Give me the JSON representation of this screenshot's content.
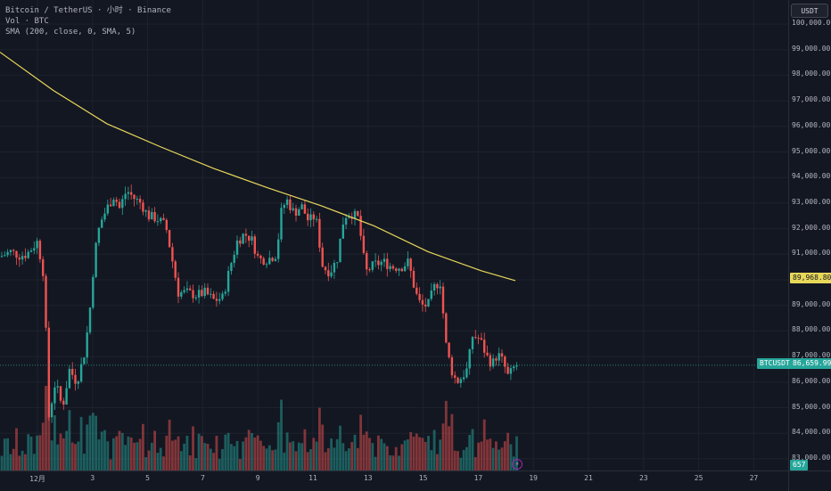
{
  "legend": {
    "symbol_line": "Bitcoin / TetherUS · 小时 · Binance",
    "volume_line": "Vol · BTC",
    "sma_line": "SMA (200, close, 0, SMA, 5)"
  },
  "currency_button": "USDT",
  "price_ticks": [
    "100,000.00",
    "99,000.00",
    "98,000.00",
    "97,000.00",
    "96,000.00",
    "95,000.00",
    "94,000.00",
    "93,000.00",
    "92,000.00",
    "91,000.00",
    "90,000.00",
    "89,000.00",
    "88,000.00",
    "87,000.00",
    "86,000.00",
    "85,000.00",
    "84,000.00",
    "83,000.00"
  ],
  "time_ticks": [
    "12月",
    "3",
    "5",
    "7",
    "9",
    "11",
    "13",
    "15",
    "17",
    "19",
    "21",
    "23",
    "25",
    "27"
  ],
  "tags": {
    "sma_value": "89,968.80",
    "current_price": "86,659.99",
    "symbol": "BTCUSDT",
    "volume": "657"
  },
  "colors": {
    "up": "#26a69a",
    "down": "#ef5350",
    "sma": "#e8d85a",
    "background": "#131722"
  },
  "chart_data": {
    "type": "candlestick",
    "timeframe": "1h",
    "ylim": [
      82600,
      100600
    ],
    "price_anchors": [
      {
        "x": 0,
        "price": 90900
      },
      {
        "x": 12,
        "price": 91100
      },
      {
        "x": 22,
        "price": 90950
      },
      {
        "x": 30,
        "price": 91000
      },
      {
        "x": 42,
        "price": 91500
      },
      {
        "x": 50,
        "price": 90000
      },
      {
        "x": 54,
        "price": 84500
      },
      {
        "x": 62,
        "price": 86000
      },
      {
        "x": 70,
        "price": 85000
      },
      {
        "x": 78,
        "price": 86500
      },
      {
        "x": 86,
        "price": 86000
      },
      {
        "x": 94,
        "price": 87000
      },
      {
        "x": 100,
        "price": 88500
      },
      {
        "x": 106,
        "price": 91000
      },
      {
        "x": 112,
        "price": 92200
      },
      {
        "x": 120,
        "price": 92800
      },
      {
        "x": 128,
        "price": 93300
      },
      {
        "x": 134,
        "price": 92800
      },
      {
        "x": 142,
        "price": 93500
      },
      {
        "x": 150,
        "price": 93200
      },
      {
        "x": 158,
        "price": 93000
      },
      {
        "x": 166,
        "price": 92500
      },
      {
        "x": 176,
        "price": 92400
      },
      {
        "x": 186,
        "price": 92100
      },
      {
        "x": 192,
        "price": 91000
      },
      {
        "x": 200,
        "price": 89500
      },
      {
        "x": 210,
        "price": 89500
      },
      {
        "x": 220,
        "price": 89400
      },
      {
        "x": 230,
        "price": 89500
      },
      {
        "x": 240,
        "price": 89200
      },
      {
        "x": 250,
        "price": 89300
      },
      {
        "x": 258,
        "price": 90500
      },
      {
        "x": 266,
        "price": 91500
      },
      {
        "x": 274,
        "price": 91800
      },
      {
        "x": 282,
        "price": 91600
      },
      {
        "x": 290,
        "price": 90800
      },
      {
        "x": 300,
        "price": 90800
      },
      {
        "x": 310,
        "price": 91000
      },
      {
        "x": 316,
        "price": 92800
      },
      {
        "x": 322,
        "price": 93100
      },
      {
        "x": 330,
        "price": 92600
      },
      {
        "x": 338,
        "price": 92900
      },
      {
        "x": 346,
        "price": 92300
      },
      {
        "x": 354,
        "price": 92500
      },
      {
        "x": 362,
        "price": 90500
      },
      {
        "x": 370,
        "price": 90300
      },
      {
        "x": 378,
        "price": 90800
      },
      {
        "x": 386,
        "price": 92500
      },
      {
        "x": 394,
        "price": 92600
      },
      {
        "x": 402,
        "price": 92400
      },
      {
        "x": 410,
        "price": 90300
      },
      {
        "x": 420,
        "price": 90600
      },
      {
        "x": 430,
        "price": 90700
      },
      {
        "x": 440,
        "price": 90500
      },
      {
        "x": 450,
        "price": 90500
      },
      {
        "x": 458,
        "price": 90700
      },
      {
        "x": 466,
        "price": 89500
      },
      {
        "x": 472,
        "price": 89000
      },
      {
        "x": 480,
        "price": 89000
      },
      {
        "x": 488,
        "price": 89800
      },
      {
        "x": 494,
        "price": 89900
      },
      {
        "x": 500,
        "price": 87500
      },
      {
        "x": 506,
        "price": 86500
      },
      {
        "x": 512,
        "price": 86000
      },
      {
        "x": 518,
        "price": 86200
      },
      {
        "x": 524,
        "price": 86500
      },
      {
        "x": 530,
        "price": 87800
      },
      {
        "x": 538,
        "price": 87700
      },
      {
        "x": 546,
        "price": 87000
      },
      {
        "x": 552,
        "price": 86700
      },
      {
        "x": 558,
        "price": 87100
      },
      {
        "x": 564,
        "price": 86800
      },
      {
        "x": 570,
        "price": 86200
      },
      {
        "x": 578,
        "price": 86660
      }
    ],
    "sma_points": [
      {
        "x": 0,
        "price": 98900
      },
      {
        "x": 60,
        "price": 97400
      },
      {
        "x": 120,
        "price": 96100
      },
      {
        "x": 180,
        "price": 95200
      },
      {
        "x": 240,
        "price": 94350
      },
      {
        "x": 300,
        "price": 93600
      },
      {
        "x": 360,
        "price": 92900
      },
      {
        "x": 420,
        "price": 92100
      },
      {
        "x": 480,
        "price": 91100
      },
      {
        "x": 540,
        "price": 90350
      },
      {
        "x": 578,
        "price": 89968.8
      }
    ],
    "last_price": 86659.99,
    "sma_last": 89968.8,
    "last_volume": 657
  }
}
